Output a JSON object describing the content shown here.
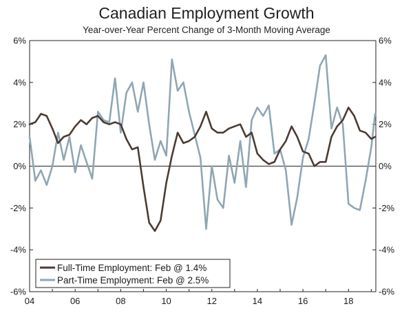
{
  "chart_data": {
    "type": "line",
    "title": "Canadian Employment Growth",
    "subtitle": "Year-over-Year Percent Change of 3-Month Moving Average",
    "xlabel": "",
    "ylabel": "",
    "x_tick_labels": [
      "04",
      "06",
      "08",
      "10",
      "12",
      "14",
      "16",
      "18"
    ],
    "x_tick_years": [
      2004,
      2006,
      2008,
      2010,
      2012,
      2014,
      2016,
      2018
    ],
    "xlim": [
      2004.0,
      2019.2
    ],
    "ylim": [
      -6,
      6
    ],
    "y_ticks": [
      -6,
      -4,
      -2,
      0,
      2,
      4,
      6
    ],
    "y_tick_labels": [
      "-6%",
      "-4%",
      "-2%",
      "0%",
      "2%",
      "4%",
      "6%"
    ],
    "right_axis_mirrors_left": true,
    "grid": false,
    "zero_line": true,
    "legend_placement": "bottom-left",
    "series": [
      {
        "name": "Full-Time Employment: Feb @ 1.4%",
        "color": "#4a3b33",
        "x": [
          2004.0,
          2004.25,
          2004.5,
          2004.75,
          2005.0,
          2005.25,
          2005.5,
          2005.75,
          2006.0,
          2006.25,
          2006.5,
          2006.75,
          2007.0,
          2007.25,
          2007.5,
          2007.75,
          2008.0,
          2008.25,
          2008.5,
          2008.75,
          2009.0,
          2009.25,
          2009.5,
          2009.75,
          2010.0,
          2010.25,
          2010.5,
          2010.75,
          2011.0,
          2011.25,
          2011.5,
          2011.75,
          2012.0,
          2012.25,
          2012.5,
          2012.75,
          2013.0,
          2013.25,
          2013.5,
          2013.75,
          2014.0,
          2014.25,
          2014.5,
          2014.75,
          2015.0,
          2015.25,
          2015.5,
          2015.75,
          2016.0,
          2016.25,
          2016.5,
          2016.75,
          2017.0,
          2017.25,
          2017.5,
          2017.75,
          2018.0,
          2018.25,
          2018.5,
          2018.75,
          2019.0,
          2019.17
        ],
        "values": [
          2.0,
          2.1,
          2.5,
          2.4,
          1.8,
          1.1,
          1.4,
          1.5,
          1.9,
          2.2,
          2.0,
          2.3,
          2.4,
          2.1,
          2.0,
          2.1,
          2.0,
          1.3,
          0.8,
          0.9,
          -1.0,
          -2.7,
          -3.1,
          -2.6,
          -0.8,
          0.5,
          1.6,
          1.1,
          1.2,
          1.4,
          1.9,
          2.6,
          1.8,
          1.6,
          1.6,
          1.8,
          1.9,
          2.0,
          1.4,
          1.6,
          0.6,
          0.3,
          0.1,
          0.2,
          0.8,
          1.2,
          1.9,
          1.4,
          0.7,
          0.6,
          0.0,
          0.2,
          0.2,
          1.4,
          1.9,
          2.2,
          2.8,
          2.4,
          1.7,
          1.6,
          1.3,
          1.4
        ]
      },
      {
        "name": "Part-Time Employment: Feb @ 2.5%",
        "color": "#8fa6b3",
        "x": [
          2004.0,
          2004.25,
          2004.5,
          2004.75,
          2005.0,
          2005.25,
          2005.5,
          2005.75,
          2006.0,
          2006.25,
          2006.5,
          2006.75,
          2007.0,
          2007.25,
          2007.5,
          2007.75,
          2008.0,
          2008.25,
          2008.5,
          2008.75,
          2009.0,
          2009.25,
          2009.5,
          2009.75,
          2010.0,
          2010.25,
          2010.5,
          2010.75,
          2011.0,
          2011.25,
          2011.5,
          2011.75,
          2012.0,
          2012.25,
          2012.5,
          2012.75,
          2013.0,
          2013.25,
          2013.5,
          2013.75,
          2014.0,
          2014.25,
          2014.5,
          2014.75,
          2015.0,
          2015.25,
          2015.5,
          2015.75,
          2016.0,
          2016.25,
          2016.5,
          2016.75,
          2017.0,
          2017.25,
          2017.5,
          2017.75,
          2018.0,
          2018.25,
          2018.5,
          2018.75,
          2019.0,
          2019.17
        ],
        "values": [
          1.4,
          -0.7,
          -0.2,
          -0.9,
          0.0,
          1.6,
          0.3,
          1.4,
          -0.3,
          1.0,
          0.2,
          -0.6,
          2.6,
          2.2,
          2.1,
          4.2,
          1.6,
          3.5,
          4.0,
          2.6,
          4.0,
          2.0,
          0.3,
          1.2,
          0.5,
          5.1,
          3.6,
          4.0,
          2.6,
          1.5,
          0.4,
          -3.0,
          0.0,
          -1.6,
          -2.0,
          0.5,
          -0.8,
          1.2,
          -1.0,
          2.2,
          2.8,
          2.4,
          2.9,
          0.6,
          0.8,
          -0.2,
          -2.8,
          -1.5,
          0.4,
          1.3,
          3.0,
          4.8,
          5.3,
          1.8,
          2.8,
          2.0,
          -1.8,
          -2.0,
          -2.1,
          -0.7,
          0.9,
          2.5
        ]
      }
    ]
  }
}
